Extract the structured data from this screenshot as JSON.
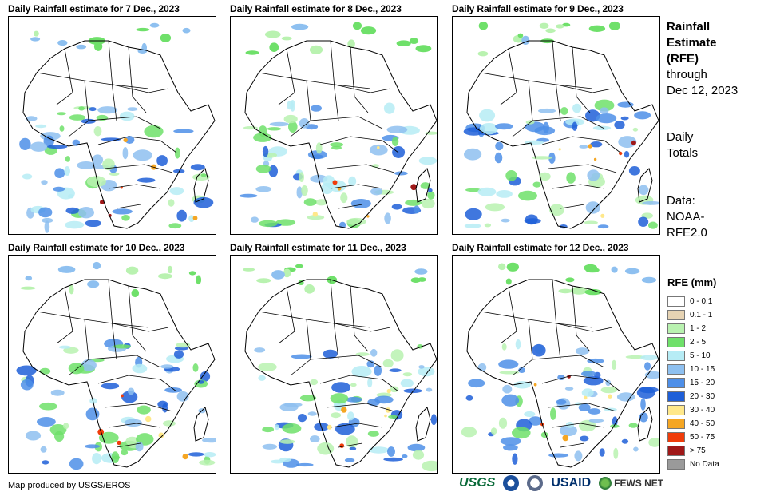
{
  "panels": [
    {
      "title": "Daily Rainfall estimate for 7 Dec., 2023"
    },
    {
      "title": "Daily Rainfall estimate for 8 Dec., 2023"
    },
    {
      "title": "Daily Rainfall estimate for 9 Dec., 2023"
    },
    {
      "title": "Daily Rainfall estimate for 10 Dec., 2023"
    },
    {
      "title": "Daily Rainfall estimate for 11 Dec., 2023"
    },
    {
      "title": "Daily Rainfall estimate for 12 Dec., 2023"
    }
  ],
  "side": {
    "title_line1": "Rainfall",
    "title_line2": "Estimate",
    "title_line3": "(RFE)",
    "through": "through",
    "date": "Dec 12, 2023",
    "daily": "Daily",
    "totals": "Totals",
    "data_label": "Data:",
    "source1": "NOAA-",
    "source2": "RFE2.0"
  },
  "legend": {
    "title": "RFE (mm)",
    "items": [
      {
        "label": "0 - 0.1",
        "color": "#ffffff"
      },
      {
        "label": "0.1 - 1",
        "color": "#e6d3b3"
      },
      {
        "label": "1 - 2",
        "color": "#b9f2b0"
      },
      {
        "label": "2 - 5",
        "color": "#6fe06a"
      },
      {
        "label": "5 - 10",
        "color": "#b6ecf5"
      },
      {
        "label": "10 - 15",
        "color": "#8ec0f0"
      },
      {
        "label": "15 - 20",
        "color": "#4e8fe8"
      },
      {
        "label": "20 - 30",
        "color": "#1e5fd8"
      },
      {
        "label": "30 - 40",
        "color": "#ffe88a"
      },
      {
        "label": "40 - 50",
        "color": "#f5a623"
      },
      {
        "label": "50 - 75",
        "color": "#f03c0a"
      },
      {
        "label": "> 75",
        "color": "#a01818"
      },
      {
        "label": "No Data",
        "color": "#9a9a9a"
      }
    ]
  },
  "credit": "Map produced by USGS/EROS",
  "logos": {
    "usgs": "USGS",
    "usaid": "USAID",
    "fews": "FEWS NET"
  }
}
